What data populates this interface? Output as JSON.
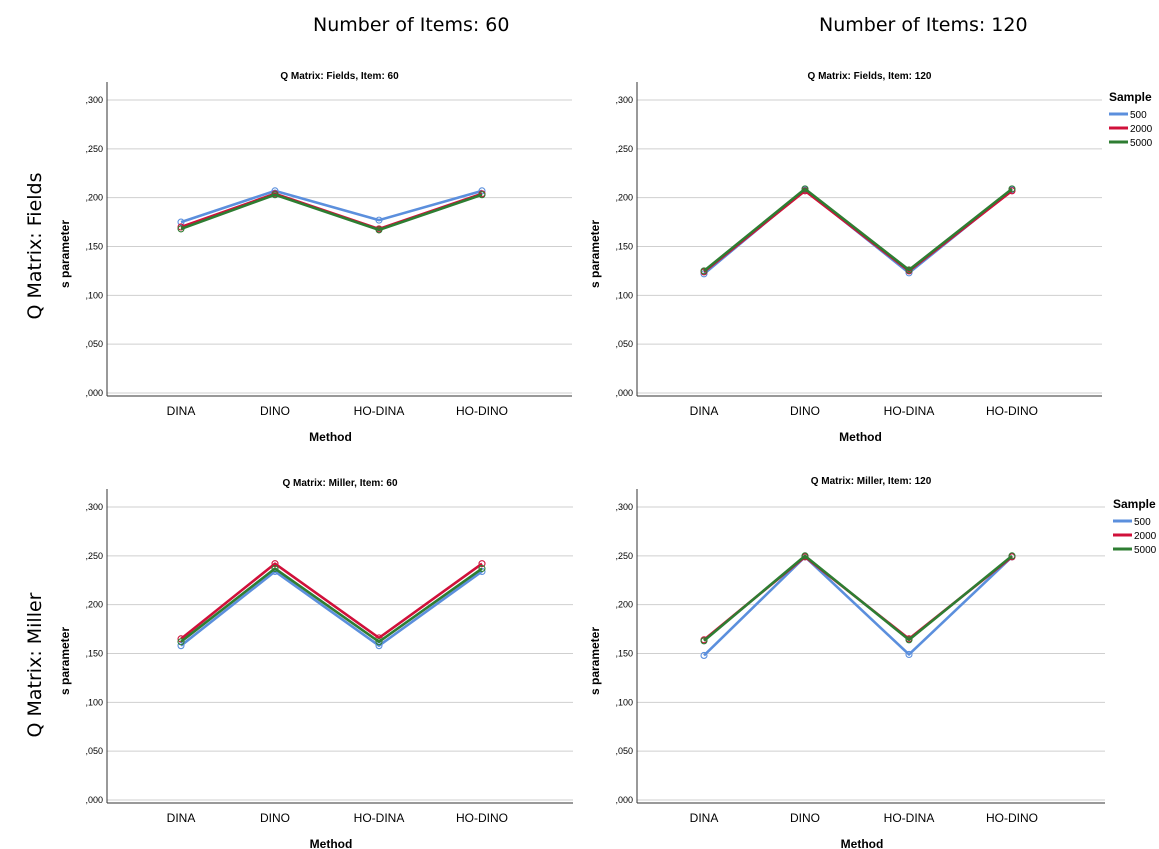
{
  "column_headers": [
    "Number of Items: 60",
    "Number of Items: 120"
  ],
  "row_headers": [
    "Q Matrix: Fields",
    "Q Matrix: Miller"
  ],
  "legend": {
    "title": "Sample",
    "entries": [
      "500",
      "2000",
      "5000"
    ],
    "colors": [
      "#5b8fdd",
      "#d0103a",
      "#2e7d32"
    ]
  },
  "chart_data": [
    {
      "type": "line",
      "title": "Q Matrix: Fields, Item: 60",
      "xlabel": "Method",
      "ylabel": "s parameter",
      "categories": [
        "DINA",
        "DINO",
        "HO-DINA",
        "HO-DINO"
      ],
      "ylim": [
        0,
        0.3
      ],
      "yticks": [
        ",000",
        ",050",
        ",100",
        ",150",
        ",200",
        ",250",
        ",300"
      ],
      "grid": true,
      "legend": false,
      "series": [
        {
          "name": "500",
          "values": [
            0.175,
            0.207,
            0.177,
            0.207
          ]
        },
        {
          "name": "2000",
          "values": [
            0.17,
            0.204,
            0.168,
            0.204
          ]
        },
        {
          "name": "5000",
          "values": [
            0.168,
            0.203,
            0.167,
            0.203
          ]
        }
      ]
    },
    {
      "type": "line",
      "title": "Q Matrix: Fields, Item: 120",
      "xlabel": "Method",
      "ylabel": "s parameter",
      "categories": [
        "DINA",
        "DINO",
        "HO-DINA",
        "HO-DINO"
      ],
      "ylim": [
        0,
        0.3
      ],
      "yticks": [
        ",000",
        ",050",
        ",100",
        ",150",
        ",200",
        ",250",
        ",300"
      ],
      "grid": true,
      "legend": true,
      "series": [
        {
          "name": "500",
          "values": [
            0.122,
            0.208,
            0.123,
            0.208
          ]
        },
        {
          "name": "2000",
          "values": [
            0.124,
            0.207,
            0.125,
            0.207
          ]
        },
        {
          "name": "5000",
          "values": [
            0.125,
            0.209,
            0.126,
            0.209
          ]
        }
      ]
    },
    {
      "type": "line",
      "title": "Q Matrix: Miller, Item: 60",
      "xlabel": "Method",
      "ylabel": "s parameter",
      "categories": [
        "DINA",
        "DINO",
        "HO-DINA",
        "HO-DINO"
      ],
      "ylim": [
        0,
        0.3
      ],
      "yticks": [
        ",000",
        ",050",
        ",100",
        ",150",
        ",200",
        ",250",
        ",300"
      ],
      "grid": true,
      "legend": false,
      "series": [
        {
          "name": "500",
          "values": [
            0.158,
            0.234,
            0.158,
            0.234
          ]
        },
        {
          "name": "2000",
          "values": [
            0.165,
            0.242,
            0.166,
            0.242
          ]
        },
        {
          "name": "5000",
          "values": [
            0.162,
            0.237,
            0.162,
            0.237
          ]
        }
      ]
    },
    {
      "type": "line",
      "title": "Q Matrix: Miller, Item: 120",
      "xlabel": "Method",
      "ylabel": "s parameter",
      "categories": [
        "DINA",
        "DINO",
        "HO-DINA",
        "HO-DINO"
      ],
      "ylim": [
        0,
        0.3
      ],
      "yticks": [
        ",000",
        ",050",
        ",100",
        ",150",
        ",200",
        ",250",
        ",300"
      ],
      "grid": true,
      "legend": true,
      "series": [
        {
          "name": "500",
          "values": [
            0.148,
            0.249,
            0.149,
            0.249
          ]
        },
        {
          "name": "2000",
          "values": [
            0.164,
            0.249,
            0.165,
            0.249
          ]
        },
        {
          "name": "5000",
          "values": [
            0.163,
            0.25,
            0.164,
            0.25
          ]
        }
      ]
    }
  ]
}
